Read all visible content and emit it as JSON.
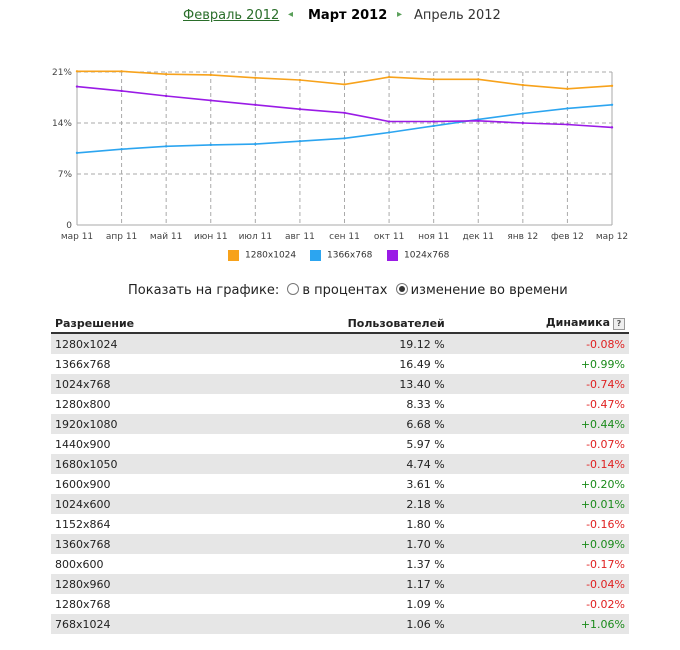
{
  "nav": {
    "prev": "Февраль 2012",
    "current": "Март 2012",
    "next": "Апрель 2012"
  },
  "colors": {
    "orange": "#f7a21b",
    "blue": "#2ca5f0",
    "purple": "#9a1be6"
  },
  "chart_data": {
    "type": "line",
    "categories": [
      "мар 11",
      "апр 11",
      "май 11",
      "июн 11",
      "июл 11",
      "авг 11",
      "сен 11",
      "окт 11",
      "ноя 11",
      "дек 11",
      "янв 12",
      "фев 12",
      "мар 12"
    ],
    "yticks": [
      "21%",
      "14%",
      "7%",
      "0"
    ],
    "ylim": [
      0,
      21
    ],
    "series": [
      {
        "name": "1280x1024",
        "color": "#f7a21b",
        "values": [
          21.1,
          21.1,
          20.7,
          20.6,
          20.2,
          19.9,
          19.3,
          20.3,
          20.0,
          20.0,
          19.2,
          18.7,
          19.1
        ]
      },
      {
        "name": "1366x768",
        "color": "#2ca5f0",
        "values": [
          9.9,
          10.4,
          10.8,
          11.0,
          11.1,
          11.5,
          11.9,
          12.7,
          13.6,
          14.5,
          15.3,
          16.0,
          16.5
        ]
      },
      {
        "name": "1024x768",
        "color": "#9a1be6",
        "values": [
          19.0,
          18.4,
          17.7,
          17.1,
          16.5,
          15.9,
          15.4,
          14.2,
          14.2,
          14.3,
          14.0,
          13.8,
          13.4
        ]
      }
    ]
  },
  "show": {
    "label": "Показать на графике:",
    "opt1": "в процентах",
    "opt2": "изменение во времени"
  },
  "table": {
    "headers": [
      "Разрешение",
      "Пользователей",
      "Динамика"
    ],
    "help": "?",
    "rows": [
      [
        "1280x1024",
        "19.12 %",
        "-0.08%"
      ],
      [
        "1366x768",
        "16.49 %",
        "+0.99%"
      ],
      [
        "1024x768",
        "13.40 %",
        "-0.74%"
      ],
      [
        "1280x800",
        "8.33 %",
        "-0.47%"
      ],
      [
        "1920x1080",
        "6.68 %",
        "+0.44%"
      ],
      [
        "1440x900",
        "5.97 %",
        "-0.07%"
      ],
      [
        "1680x1050",
        "4.74 %",
        "-0.14%"
      ],
      [
        "1600x900",
        "3.61 %",
        "+0.20%"
      ],
      [
        "1024x600",
        "2.18 %",
        "+0.01%"
      ],
      [
        "1152x864",
        "1.80 %",
        "-0.16%"
      ],
      [
        "1360x768",
        "1.70 %",
        "+0.09%"
      ],
      [
        "800x600",
        "1.37 %",
        "-0.17%"
      ],
      [
        "1280x960",
        "1.17 %",
        "-0.04%"
      ],
      [
        "1280x768",
        "1.09 %",
        "-0.02%"
      ],
      [
        "768x1024",
        "1.06 %",
        "+1.06%"
      ]
    ]
  }
}
